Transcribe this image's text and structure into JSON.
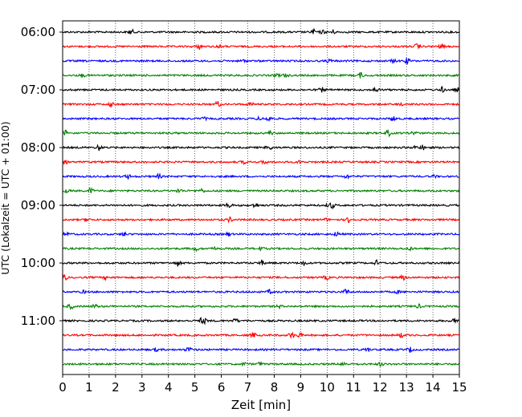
{
  "chart_data": {
    "type": "line",
    "title": "",
    "xlabel": "Zeit  [min]",
    "ylabel": "UTC (Lokalzeit = UTC + 01:00)",
    "xlim": [
      0,
      15
    ],
    "x_ticks": [
      "0",
      "1",
      "2",
      "3",
      "4",
      "5",
      "6",
      "7",
      "8",
      "9",
      "10",
      "11",
      "12",
      "13",
      "14",
      "15"
    ],
    "y_ticks": [
      "06:00",
      "07:00",
      "08:00",
      "09:00",
      "10:00",
      "11:00"
    ],
    "grid": "vertical dotted",
    "trace_start": "06:00",
    "trace_interval_minutes": 15,
    "trace_count": 24,
    "trace_colors": [
      "#000000",
      "#ff0000",
      "#0000ff",
      "#008000"
    ],
    "series": [
      {
        "start": "06:00",
        "color": "#000000"
      },
      {
        "start": "06:15",
        "color": "#ff0000"
      },
      {
        "start": "06:30",
        "color": "#0000ff"
      },
      {
        "start": "06:45",
        "color": "#008000"
      },
      {
        "start": "07:00",
        "color": "#000000"
      },
      {
        "start": "07:15",
        "color": "#ff0000"
      },
      {
        "start": "07:30",
        "color": "#0000ff"
      },
      {
        "start": "07:45",
        "color": "#008000"
      },
      {
        "start": "08:00",
        "color": "#000000"
      },
      {
        "start": "08:15",
        "color": "#ff0000"
      },
      {
        "start": "08:30",
        "color": "#0000ff"
      },
      {
        "start": "08:45",
        "color": "#008000"
      },
      {
        "start": "09:00",
        "color": "#000000"
      },
      {
        "start": "09:15",
        "color": "#ff0000"
      },
      {
        "start": "09:30",
        "color": "#0000ff"
      },
      {
        "start": "09:45",
        "color": "#008000"
      },
      {
        "start": "10:00",
        "color": "#000000"
      },
      {
        "start": "10:15",
        "color": "#ff0000"
      },
      {
        "start": "10:30",
        "color": "#0000ff"
      },
      {
        "start": "10:45",
        "color": "#008000"
      },
      {
        "start": "11:00",
        "color": "#000000"
      },
      {
        "start": "11:15",
        "color": "#ff0000"
      },
      {
        "start": "11:30",
        "color": "#0000ff"
      },
      {
        "start": "11:45",
        "color": "#008000"
      }
    ]
  }
}
